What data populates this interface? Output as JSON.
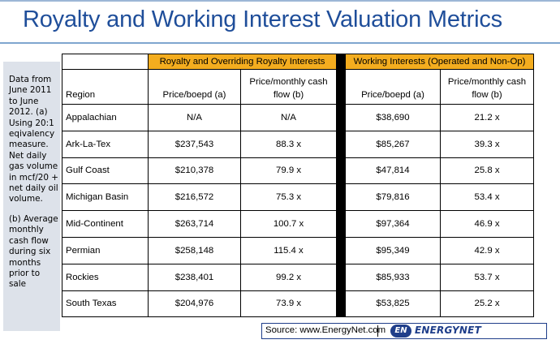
{
  "title": "Royalty and Working Interest Valuation Metrics",
  "side_note": {
    "paragraph_1": "Data from June 2011 to June 2012. (a) Using 20:1 eqivalency measure. Net daily gas volume in mcf/20 + net daily oil volume.",
    "paragraph_2": "(b) Average monthly cash flow during six months prior to sale"
  },
  "table": {
    "group_headers": {
      "royalty": "Royalty and Overriding Royalty Interests",
      "working": "Working Interests (Operated and Non-Op)"
    },
    "column_headers": {
      "region": "Region",
      "royalty_price_boepd": "Price/boepd (a)",
      "royalty_price_cash_flow": "Price/monthly cash flow (b)",
      "working_price_boepd": "Price/boepd (a)",
      "working_price_cash_flow": "Price/monthly cash flow (b)"
    },
    "rows": [
      {
        "region": "Appalachian",
        "roy_boepd": "N/A",
        "roy_cf": "N/A",
        "wi_boepd": "$38,690",
        "wi_cf": "21.2 x"
      },
      {
        "region": "Ark-La-Tex",
        "roy_boepd": "$237,543",
        "roy_cf": "88.3 x",
        "wi_boepd": "$85,267",
        "wi_cf": "39.3 x"
      },
      {
        "region": "Gulf Coast",
        "roy_boepd": "$210,378",
        "roy_cf": "79.9 x",
        "wi_boepd": "$47,814",
        "wi_cf": "25.8 x"
      },
      {
        "region": "Michigan Basin",
        "roy_boepd": "$216,572",
        "roy_cf": "75.3 x",
        "wi_boepd": "$79,816",
        "wi_cf": "53.4 x"
      },
      {
        "region": "Mid-Continent",
        "roy_boepd": "$263,714",
        "roy_cf": "100.7 x",
        "wi_boepd": "$97,364",
        "wi_cf": "46.9 x"
      },
      {
        "region": "Permian",
        "roy_boepd": "$258,148",
        "roy_cf": "115.4 x",
        "wi_boepd": "$95,349",
        "wi_cf": "42.9 x"
      },
      {
        "region": "Rockies",
        "roy_boepd": "$238,401",
        "roy_cf": "99.2 x",
        "wi_boepd": "$85,933",
        "wi_cf": "53.7 x"
      },
      {
        "region": "South Texas",
        "roy_boepd": "$204,976",
        "roy_cf": "73.9 x",
        "wi_boepd": "$53,825",
        "wi_cf": "25.2 x"
      }
    ]
  },
  "source": {
    "text": "Source: www.EnergyNet.com",
    "logo_badge": "EN",
    "logo_word": "ENERGYNET"
  },
  "colors": {
    "title": "#1f4e9a",
    "group_header_fill": "#f4ad1f",
    "side_note_fill": "#dde2ea",
    "logo": "#1f3e8a"
  }
}
